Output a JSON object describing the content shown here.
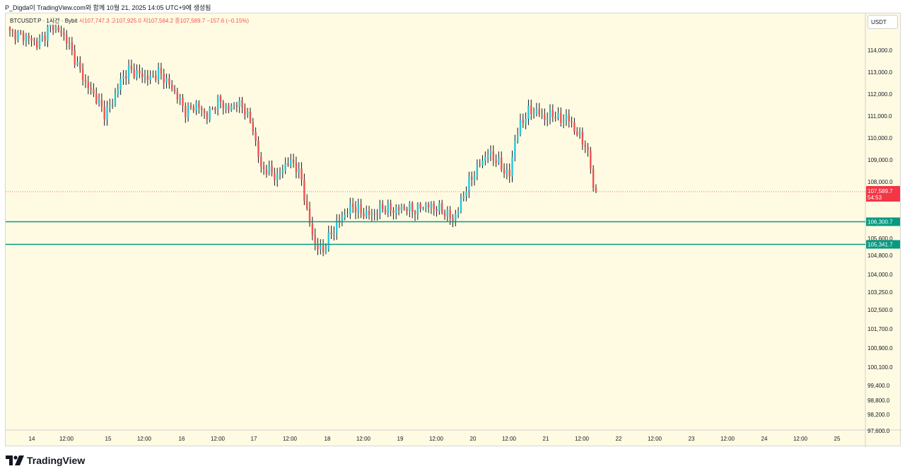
{
  "caption": "P_Digda이 TradingView.com와 함께 10월 21, 2025 14:05 UTC+9에 생성됨",
  "legend": {
    "symbol": "BTCUSDT.P · 1시간 · Bybit",
    "open": "시107,747.3",
    "high": "고107,925.0",
    "low": "저107,564.2",
    "close": "종107,589.7",
    "change": "−157.6 (−0.15%)"
  },
  "currency": "USDT",
  "brand": "TradingView",
  "colors": {
    "up": "#26c6da",
    "down": "#ef5350",
    "level": "#089981",
    "background": "#fffbe3",
    "current_price": "#f23645"
  },
  "chart_data": {
    "type": "candlestick",
    "symbol": "BTCUSDT.P",
    "interval": "1시간",
    "exchange": "Bybit",
    "current_price": "107,589.7",
    "countdown": "54:53",
    "horizontal_levels": [
      {
        "value": 106300.7,
        "label": "106,300.7"
      },
      {
        "value": 105341.7,
        "label": "105,341.7"
      }
    ],
    "y_ticks": [
      {
        "value": 114000,
        "label": "114,000.0"
      },
      {
        "value": 113000,
        "label": "113,000.0"
      },
      {
        "value": 112000,
        "label": "112,000.0"
      },
      {
        "value": 111000,
        "label": "111,000.0"
      },
      {
        "value": 110000,
        "label": "110,000.0"
      },
      {
        "value": 109000,
        "label": "109,000.0"
      },
      {
        "value": 108000,
        "label": "108,000.0"
      },
      {
        "value": 105600,
        "label": "105,600.0"
      },
      {
        "value": 104800,
        "label": "104,800.0"
      },
      {
        "value": 104000,
        "label": "104,000.0"
      },
      {
        "value": 103250,
        "label": "103,250.0"
      },
      {
        "value": 102500,
        "label": "102,500.0"
      },
      {
        "value": 101700,
        "label": "101,700.0"
      },
      {
        "value": 100900,
        "label": "100,900.0"
      },
      {
        "value": 100100,
        "label": "100,100.0"
      },
      {
        "value": 99400,
        "label": "99,400.0"
      },
      {
        "value": 98800,
        "label": "98,800.0"
      },
      {
        "value": 98200,
        "label": "98,200.0"
      },
      {
        "value": 97600,
        "label": "97,600.0"
      }
    ],
    "x_ticks": [
      "14",
      "12:00",
      "15",
      "12:00",
      "16",
      "12:00",
      "17",
      "12:00",
      "18",
      "12:00",
      "19",
      "12:00",
      "20",
      "12:00",
      "21",
      "12:00",
      "22",
      "12:00",
      "23",
      "12:00",
      "24",
      "12:00",
      "25"
    ],
    "anchors": [
      [
        0,
        114800
      ],
      [
        6,
        114600
      ],
      [
        10,
        114300
      ],
      [
        13,
        114700
      ],
      [
        15,
        115200
      ],
      [
        18,
        114900
      ],
      [
        21,
        114500
      ],
      [
        24,
        113600
      ],
      [
        28,
        112500
      ],
      [
        32,
        111800
      ],
      [
        35,
        111100
      ],
      [
        38,
        111600
      ],
      [
        41,
        112600
      ],
      [
        44,
        113100
      ],
      [
        48,
        112900
      ],
      [
        52,
        112700
      ],
      [
        55,
        113000
      ],
      [
        58,
        112600
      ],
      [
        62,
        111900
      ],
      [
        65,
        111200
      ],
      [
        69,
        111500
      ],
      [
        73,
        111000
      ],
      [
        77,
        111700
      ],
      [
        81,
        111300
      ],
      [
        84,
        111600
      ],
      [
        87,
        111300
      ],
      [
        90,
        110400
      ],
      [
        93,
        108600
      ],
      [
        96,
        108500
      ],
      [
        99,
        108200
      ],
      [
        102,
        108800
      ],
      [
        105,
        108900
      ],
      [
        108,
        108100
      ],
      [
        110,
        106700
      ],
      [
        113,
        105300
      ],
      [
        116,
        105000
      ],
      [
        118,
        105600
      ],
      [
        121,
        106200
      ],
      [
        124,
        106600
      ],
      [
        127,
        107000
      ],
      [
        130,
        106700
      ],
      [
        134,
        106600
      ],
      [
        138,
        106900
      ],
      [
        142,
        106800
      ],
      [
        146,
        106900
      ],
      [
        150,
        106800
      ],
      [
        154,
        107000
      ],
      [
        158,
        106900
      ],
      [
        161,
        106700
      ],
      [
        164,
        106400
      ],
      [
        166,
        106800
      ],
      [
        168,
        107500
      ],
      [
        171,
        108200
      ],
      [
        174,
        108800
      ],
      [
        177,
        109300
      ],
      [
        180,
        109000
      ],
      [
        183,
        108500
      ],
      [
        185,
        108300
      ],
      [
        187,
        109900
      ],
      [
        189,
        110600
      ],
      [
        192,
        111200
      ],
      [
        195,
        111200
      ],
      [
        198,
        110900
      ],
      [
        201,
        111100
      ],
      [
        204,
        110800
      ],
      [
        206,
        111000
      ],
      [
        208,
        110600
      ],
      [
        210,
        110200
      ],
      [
        213,
        109700
      ],
      [
        215,
        108700
      ],
      [
        216,
        107747
      ],
      [
        217,
        107590
      ]
    ],
    "xlabel": "",
    "ylabel": ""
  }
}
